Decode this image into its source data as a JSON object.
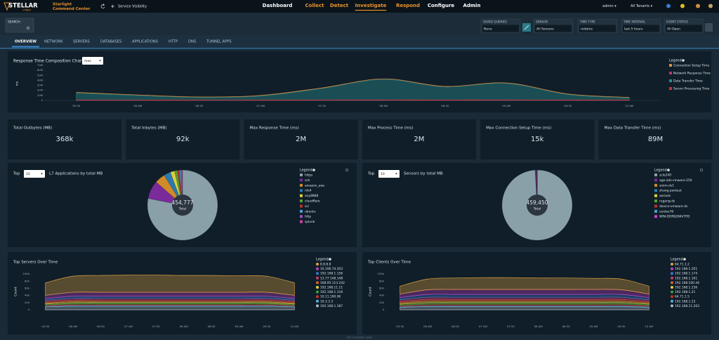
{
  "header": {
    "logo": "STELLAR",
    "logo_sub": "CYBER",
    "product": "Starlight",
    "product_sub": "Command Center",
    "breadcrumb": "Service Visibility",
    "nav": [
      {
        "label": "Dashboard",
        "color": "#ffffff"
      },
      {
        "label": "Collect",
        "color": "#e8922e"
      },
      {
        "label": "Detect",
        "color": "#e8922e"
      },
      {
        "label": "Investigate",
        "color": "#e8922e"
      },
      {
        "label": "Respond",
        "color": "#e8922e"
      },
      {
        "label": "Configure",
        "color": "#ffffff"
      },
      {
        "label": "Admin",
        "color": "#ffffff"
      }
    ],
    "active_nav": 3,
    "user": "admin ▾",
    "tenant": "All Tenants ▾"
  },
  "filters": {
    "search_label": "SEARCH:",
    "fields": [
      {
        "label": "SAVED QUERIES",
        "value": "None"
      },
      {
        "label": "SENSOR",
        "value": "All Sensors"
      },
      {
        "label": "TIME TYPE",
        "value": "relative"
      },
      {
        "label": "TIME INTERVAL",
        "value": "last 5 hours"
      },
      {
        "label": "EVENT STATUS",
        "value": "All Open"
      }
    ]
  },
  "tabs": [
    "OVERVIEW",
    "NETWORK",
    "SERVERS",
    "DATABASES",
    "APPLICATIONS",
    "HTTP",
    "DNS",
    "TUNNEL APPS"
  ],
  "active_tab": 0,
  "response_chart": {
    "type": "line",
    "title": "Response Time Composition Chart",
    "select": "max",
    "y_label": "ms",
    "x": [
      "05:30",
      "06 AM",
      "06:30",
      "07 AM",
      "07:30",
      "08 AM",
      "08:30",
      "09 AM",
      "09:30",
      "10 AM"
    ],
    "ylim": [
      0,
      70000000
    ],
    "yticks": [
      0,
      {
        "value": 10000000,
        "label": "10M"
      },
      {
        "value": 20000000,
        "label": "20M"
      },
      {
        "value": 30000000,
        "label": "30M"
      },
      {
        "value": 40000000,
        "label": "40M"
      },
      {
        "value": 50000000,
        "label": "50M"
      },
      {
        "value": 60000000,
        "label": "60M"
      },
      {
        "value": 70000000,
        "label": "70M"
      }
    ],
    "legend_title": "Legend",
    "series": [
      {
        "name": "Connection Setup Time",
        "color": "#e08a3a",
        "kind": "line",
        "values": [
          16000000,
          11000000,
          7000000,
          10000000,
          25000000,
          43000000,
          28000000,
          35000000,
          13000000,
          6000000
        ]
      },
      {
        "name": "Network Response Time",
        "color": "#c0306a",
        "kind": "line",
        "values": [
          800000,
          700000,
          600000,
          700000,
          900000,
          1000000,
          900000,
          1000000,
          800000,
          700000
        ]
      },
      {
        "name": "Data Transfer Time",
        "color": "#2a8a8a",
        "kind": "area",
        "values": [
          15000000,
          10000000,
          6000000,
          9000000,
          24000000,
          42000000,
          27000000,
          34000000,
          12000000,
          5000000
        ]
      },
      {
        "name": "Server Processing Time",
        "color": "#d03030",
        "kind": "line",
        "values": [
          400000,
          300000,
          300000,
          400000,
          500000,
          500000,
          400000,
          500000,
          400000,
          300000
        ]
      }
    ]
  },
  "stats": [
    {
      "label": "Total Outbytes (MB)",
      "value": "368k"
    },
    {
      "label": "Total Inbytes (MB)",
      "value": "92k"
    },
    {
      "label": "Max Response Time (ms)",
      "value": "2M"
    },
    {
      "label": "Max Process Time (ms)",
      "value": "2M"
    },
    {
      "label": "Max Connection Setup Time (ms)",
      "value": "15k"
    },
    {
      "label": "Max Data Transfer Time (ms)",
      "value": "89M"
    }
  ],
  "pie_charts": [
    {
      "type": "pie",
      "top_label": "Top",
      "select": "10",
      "title": "L7 Applications by total MB",
      "total": "454,777",
      "total_label": "Total",
      "legend_title": "Legend",
      "categories": [
        "https",
        "ssh",
        "amazon_aws",
        "nfs4",
        "any8888",
        "cloudflare",
        "ssl",
        "ubuntu",
        "http",
        "splunk"
      ],
      "colors": [
        "#8aa0a8",
        "#7b2a9c",
        "#d08a2a",
        "#2a7ab0",
        "#d8d040",
        "#5aa030",
        "#c03030",
        "#50a0d0",
        "#9050c0",
        "#d040a0"
      ],
      "values": [
        355000,
        38000,
        22000,
        14000,
        9000,
        6000,
        4500,
        3000,
        2000,
        1277
      ]
    },
    {
      "type": "pie",
      "top_label": "Top",
      "select": "10",
      "title": "Sensors by total MB",
      "total": "459,450",
      "total_label": "Total",
      "legend_title": "Legend",
      "categories": [
        "scle240",
        "age-ads-vmware-250",
        "sixim-ds1",
        "zhang-pentest",
        "aeriads",
        "rugang-ds",
        "device-vmware-ds",
        "centos76",
        "WIN-DOR6284V7FD"
      ],
      "colors": [
        "#8aa0a8",
        "#7b2a9c",
        "#d08a2a",
        "#2a7ab0",
        "#d8d040",
        "#5aa030",
        "#c03030",
        "#50a0d0",
        "#d040d0"
      ],
      "values": [
        455000,
        3000,
        600,
        300,
        200,
        150,
        100,
        60,
        40
      ]
    }
  ],
  "area_charts": [
    {
      "type": "area",
      "stacked": true,
      "title": "Top Servers Over Time",
      "y_label": "Count",
      "legend_title": "Legend",
      "x": [
        "05:30",
        "06 AM",
        "06:30",
        "07 AM",
        "07:30",
        "08 AM",
        "08:30",
        "09 AM",
        "09:30",
        "10 AM"
      ],
      "ylim": [
        0,
        110000
      ],
      "yticks": [
        0,
        {
          "value": 20000,
          "label": "20k"
        },
        {
          "value": 40000,
          "label": "40k"
        },
        {
          "value": 60000,
          "label": "60k"
        },
        {
          "value": 80000,
          "label": "80k"
        },
        {
          "value": 100000,
          "label": "100k"
        }
      ],
      "series": [
        {
          "name": "8.8.8.8",
          "color": "#e0a040",
          "values": [
            35000,
            45000,
            47000,
            48000,
            48000,
            47000,
            47000,
            46000,
            45000,
            35000
          ]
        },
        {
          "name": "10.196.74.203",
          "color": "#c040c0",
          "values": [
            9000,
            11000,
            11000,
            11000,
            11000,
            11000,
            11000,
            11000,
            11000,
            9000
          ]
        },
        {
          "name": "192.168.1.156",
          "color": "#3a7ad0",
          "values": [
            5000,
            6000,
            6000,
            6000,
            6000,
            6000,
            6000,
            6000,
            6000,
            5000
          ]
        },
        {
          "name": "13.77.148.148",
          "color": "#d03a6a",
          "values": [
            4000,
            5000,
            5000,
            5000,
            5000,
            5000,
            5000,
            5000,
            5000,
            4000
          ]
        },
        {
          "name": "168.95.113.242",
          "color": "#e06030",
          "values": [
            3500,
            4000,
            4000,
            4000,
            4000,
            4000,
            4000,
            4000,
            4000,
            3500
          ]
        },
        {
          "name": "192.168.11.11",
          "color": "#e0d040",
          "values": [
            3000,
            3500,
            3500,
            3500,
            3500,
            3500,
            3500,
            3500,
            3500,
            3000
          ]
        },
        {
          "name": "192.168.1.116",
          "color": "#40a040",
          "values": [
            3000,
            3500,
            3500,
            3500,
            3500,
            3500,
            3500,
            3500,
            3500,
            3000
          ]
        },
        {
          "name": "10.11.190.90",
          "color": "#d03030",
          "values": [
            2500,
            3000,
            3000,
            3000,
            3000,
            3000,
            3000,
            3000,
            3000,
            2500
          ]
        },
        {
          "name": "10.3.3.3",
          "color": "#5ab0e0",
          "values": [
            2500,
            3000,
            3000,
            3000,
            3000,
            3000,
            3000,
            3000,
            3000,
            2500
          ]
        },
        {
          "name": "192.168.1.187",
          "color": "#b0b8c0",
          "values": [
            8000,
            10000,
            10000,
            10000,
            10000,
            10000,
            10000,
            10000,
            10000,
            8000
          ]
        }
      ]
    },
    {
      "type": "area",
      "stacked": true,
      "title": "Top Clients Over Time",
      "y_label": "Count",
      "legend_title": "Legend",
      "x": [
        "05:30",
        "06 AM",
        "06:30",
        "07 AM",
        "07:30",
        "08 AM",
        "08:30",
        "09 AM",
        "09:30",
        "10 AM"
      ],
      "ylim": [
        0,
        110000
      ],
      "yticks": [
        0,
        {
          "value": 20000,
          "label": "20k"
        },
        {
          "value": 40000,
          "label": "40k"
        },
        {
          "value": 60000,
          "label": "60k"
        },
        {
          "value": 80000,
          "label": "80k"
        },
        {
          "value": 100000,
          "label": "100k"
        }
      ],
      "series": [
        {
          "name": "64.71.1.2",
          "color": "#e0a040",
          "values": [
            22000,
            30000,
            32000,
            33000,
            33000,
            32000,
            32000,
            31000,
            30000,
            22000
          ]
        },
        {
          "name": "192.168.1.201",
          "color": "#c040c0",
          "values": [
            10000,
            13000,
            14000,
            14000,
            14000,
            14000,
            14000,
            14000,
            13000,
            10000
          ]
        },
        {
          "name": "192.168.1.174",
          "color": "#3a7ad0",
          "values": [
            6000,
            8000,
            8000,
            8000,
            8000,
            8000,
            8000,
            8000,
            8000,
            6000
          ]
        },
        {
          "name": "192.168.1.161",
          "color": "#d03a6a",
          "values": [
            5000,
            6000,
            6000,
            6000,
            6000,
            6000,
            6000,
            6000,
            6000,
            5000
          ]
        },
        {
          "name": "192.168.100.44",
          "color": "#e06030",
          "values": [
            4000,
            5000,
            5000,
            5000,
            5000,
            5000,
            5000,
            5000,
            5000,
            4000
          ]
        },
        {
          "name": "192.168.1.236",
          "color": "#e0d040",
          "values": [
            3500,
            4500,
            4500,
            4500,
            4500,
            4500,
            4500,
            4500,
            4500,
            3500
          ]
        },
        {
          "name": "192.168.1.21",
          "color": "#40a040",
          "values": [
            3000,
            4000,
            4000,
            4000,
            4000,
            4000,
            4000,
            4000,
            4000,
            3000
          ]
        },
        {
          "name": "64.71.1.5",
          "color": "#d03030",
          "values": [
            3000,
            3500,
            3500,
            3500,
            3500,
            3500,
            3500,
            3500,
            3500,
            3000
          ]
        },
        {
          "name": "192.168.1.23",
          "color": "#5ab0e0",
          "values": [
            2500,
            3000,
            3000,
            3000,
            3000,
            3000,
            3000,
            3000,
            3000,
            2500
          ]
        },
        {
          "name": "192.168.11.203",
          "color": "#b0b8c0",
          "values": [
            7000,
            9000,
            9000,
            9000,
            9000,
            9000,
            9000,
            9000,
            9000,
            7000
          ]
        }
      ]
    }
  ],
  "footer": "CM 3.4 Stellar Cyber"
}
